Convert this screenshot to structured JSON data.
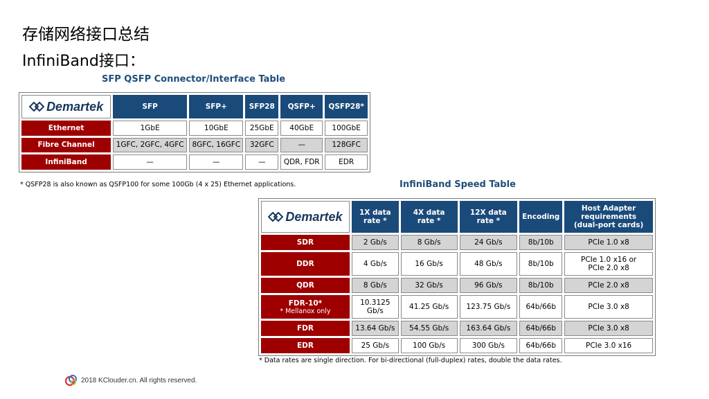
{
  "slide": {
    "title_line1": "存储网络接口总结",
    "title_line2": "InfiniBand接口："
  },
  "logo_text": "Demartek",
  "connector_table": {
    "caption": "SFP QSFP Connector/Interface Table",
    "headers": [
      "SFP",
      "SFP+",
      "SFP28",
      "QSFP+",
      "QSFP28*"
    ],
    "rows": [
      {
        "label": "Ethernet",
        "cells": [
          "1GbE",
          "10GbE",
          "25GbE",
          "40GbE",
          "100GbE"
        ]
      },
      {
        "label": "Fibre Channel",
        "cells": [
          "1GFC, 2GFC, 4GFC",
          "8GFC, 16GFC",
          "32GFC",
          "—",
          "128GFC"
        ]
      },
      {
        "label": "InfiniBand",
        "cells": [
          "—",
          "—",
          "—",
          "QDR, FDR",
          "EDR"
        ]
      }
    ],
    "footnote": "* QSFP28 is also known as QSFP100 for some 100Gb (4 x 25) Ethernet applications."
  },
  "speed_table": {
    "caption": "InfiniBand Speed Table",
    "headers": {
      "c1_line1": "1X data",
      "c1_line2": "rate *",
      "c2_line1": "4X data",
      "c2_line2": "rate *",
      "c3_line1": "12X data",
      "c3_line2": "rate *",
      "c4": "Encoding",
      "c5_line1": "Host Adapter",
      "c5_line2": "requirements",
      "c5_line3": "(dual-port cards)"
    },
    "rows": [
      {
        "label": "SDR",
        "sublabel": "",
        "cells": [
          "2 Gb/s",
          "8 Gb/s",
          "24 Gb/s",
          "8b/10b",
          "PCIe 1.0 x8"
        ]
      },
      {
        "label": "DDR",
        "sublabel": "",
        "cells": [
          "4 Gb/s",
          "16 Gb/s",
          "48 Gb/s",
          "8b/10b",
          "PCIe 1.0 x16 or",
          "PCIe 2.0 x8"
        ]
      },
      {
        "label": "QDR",
        "sublabel": "",
        "cells": [
          "8 Gb/s",
          "32 Gb/s",
          "96 Gb/s",
          "8b/10b",
          "PCIe 2.0 x8"
        ]
      },
      {
        "label": "FDR-10*",
        "sublabel": "* Mellanox only",
        "cells": [
          "10.3125",
          "Gb/s",
          "41.25 Gb/s",
          "123.75 Gb/s",
          "64b/66b",
          "PCIe 3.0 x8"
        ]
      },
      {
        "label": "FDR",
        "sublabel": "",
        "cells": [
          "13.64 Gb/s",
          "54.55 Gb/s",
          "163.64 Gb/s",
          "64b/66b",
          "PCIe 3.0 x8"
        ]
      },
      {
        "label": "EDR",
        "sublabel": "",
        "cells": [
          "25 Gb/s",
          "100 Gb/s",
          "300 Gb/s",
          "64b/66b",
          "PCIe 3.0 x16"
        ]
      }
    ],
    "footnote": "* Data rates are single direction. For bi-directional (full-duplex) rates, double the data rates."
  },
  "footer": {
    "text": "2018 KClouder.cn. All rights reserved."
  },
  "colors": {
    "header_blue": "#1a4a7a",
    "row_red": "#9e0000",
    "gray_row": "#d4d4d4",
    "caption_blue": "#1f4e79"
  }
}
